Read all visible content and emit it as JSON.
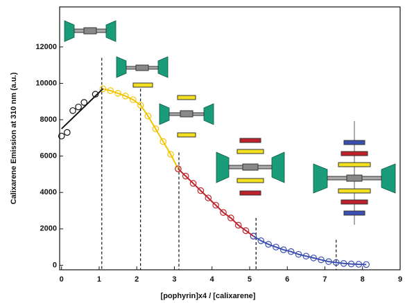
{
  "chart_data": {
    "type": "scatter-line",
    "x_label": "[pophyrin]x4 / [calixarene]",
    "y_label": "Calixarene Emission at 310 nm (a.u.)",
    "xlim": [
      -0.05,
      9
    ],
    "ylim": [
      -250,
      14200
    ],
    "xticks": [
      0,
      1,
      2,
      3,
      4,
      5,
      6,
      7,
      8,
      9
    ],
    "yticks": [
      0,
      2000,
      4000,
      6000,
      8000,
      10000,
      12000
    ],
    "series": [
      {
        "color": "#111111",
        "connect": false,
        "x": [
          0,
          0.15,
          0.3,
          0.45,
          0.6,
          0.9
        ],
        "values": [
          7100,
          7300,
          8500,
          8700,
          8950,
          9400
        ]
      },
      {
        "color": "#f2c400",
        "connect": true,
        "x": [
          1.1,
          1.3,
          1.5,
          1.7,
          1.9,
          2.1,
          2.3,
          2.5,
          2.7,
          2.9,
          3.1
        ],
        "values": [
          9700,
          9600,
          9450,
          9300,
          9100,
          8800,
          8200,
          7500,
          6800,
          6100,
          5300
        ]
      },
      {
        "color": "#c0202a",
        "connect": true,
        "x": [
          3.1,
          3.3,
          3.5,
          3.7,
          3.9,
          4.1,
          4.3,
          4.5,
          4.7,
          4.9,
          5.1
        ],
        "values": [
          5300,
          4900,
          4500,
          4100,
          3700,
          3300,
          2900,
          2600,
          2200,
          1900,
          1600
        ]
      },
      {
        "color": "#3a4fb0",
        "connect": true,
        "x": [
          5.1,
          5.3,
          5.5,
          5.7,
          5.9,
          6.1,
          6.3,
          6.5,
          6.7,
          6.9,
          7.1,
          7.3,
          7.5,
          7.7,
          7.9,
          8.1
        ],
        "values": [
          1600,
          1350,
          1150,
          1000,
          850,
          750,
          600,
          500,
          400,
          300,
          200,
          150,
          100,
          70,
          50,
          40
        ]
      },
      {
        "color": "#111111",
        "connect": true,
        "markers": false,
        "x": [
          0,
          1.1
        ],
        "values": [
          7500,
          9700
        ]
      }
    ],
    "dashed_lines": [
      {
        "x": 1.07,
        "top": 11400
      },
      {
        "x": 2.1,
        "top": 9700
      },
      {
        "x": 3.12,
        "top": 6200
      },
      {
        "x": 5.17,
        "top": 2600
      },
      {
        "x": 7.3,
        "top": 1400
      }
    ]
  }
}
